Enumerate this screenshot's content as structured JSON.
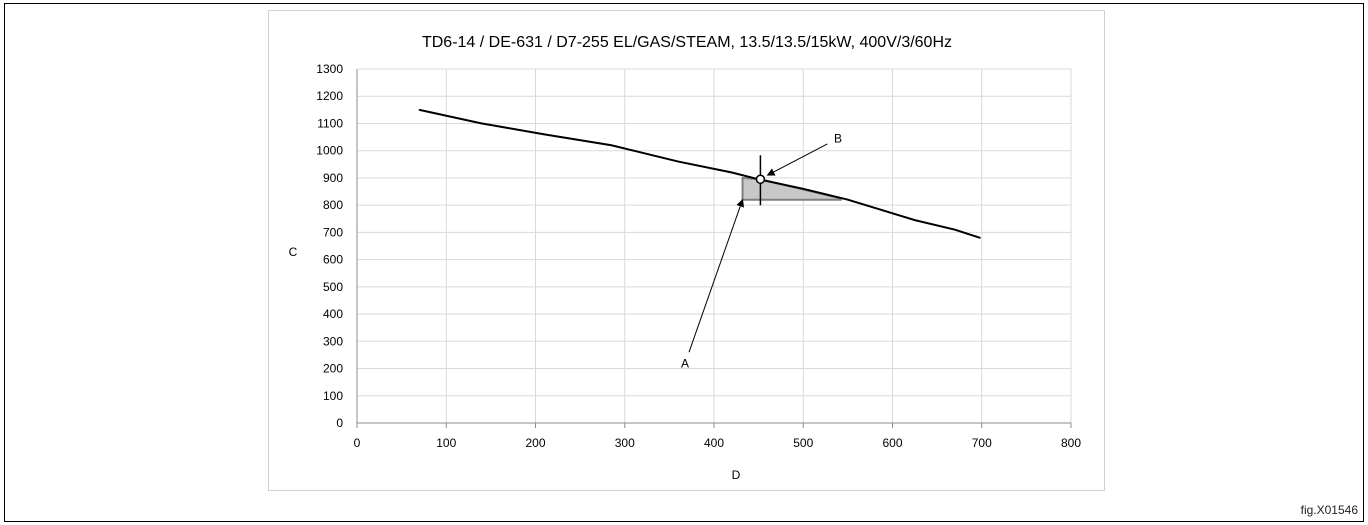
{
  "figure_ref": "fig.X01546",
  "chart_data": {
    "type": "line",
    "title": "TD6-14 / DE-631 / D7-255 EL/GAS/STEAM, 13.5/13.5/15kW, 400V/3/60Hz",
    "xlabel": "D",
    "ylabel": "C",
    "xlim": [
      0,
      800
    ],
    "ylim": [
      0,
      1300
    ],
    "x_ticks": [
      0,
      100,
      200,
      300,
      400,
      500,
      600,
      700,
      800
    ],
    "y_ticks": [
      0,
      100,
      200,
      300,
      400,
      500,
      600,
      700,
      800,
      900,
      1000,
      1100,
      1200,
      1300
    ],
    "grid": true,
    "series": [
      {
        "values": [
          [
            70,
            1150
          ],
          [
            140,
            1100
          ],
          [
            210,
            1060
          ],
          [
            285,
            1020
          ],
          [
            360,
            960
          ],
          [
            420,
            920
          ],
          [
            450,
            895
          ],
          [
            500,
            860
          ],
          [
            550,
            820
          ],
          [
            590,
            780
          ],
          [
            625,
            745
          ],
          [
            670,
            710
          ],
          [
            698,
            680
          ]
        ]
      }
    ],
    "highlight_region": [
      [
        432,
        900
      ],
      [
        432,
        820
      ],
      [
        542,
        820
      ],
      [
        542,
        825
      ],
      [
        452,
        895
      ]
    ],
    "operating_point": [
      452,
      895
    ],
    "annotations": [
      {
        "label": "A",
        "from": [
          372,
          260
        ],
        "to": [
          432,
          820
        ]
      },
      {
        "label": "B",
        "from": [
          527,
          1025
        ],
        "to": [
          460,
          910
        ]
      }
    ],
    "colors": {
      "line": "#000000",
      "grid": "#d9d9d9",
      "region_fill": "#c8c8c8",
      "region_stroke": "#7f7f7f"
    }
  }
}
